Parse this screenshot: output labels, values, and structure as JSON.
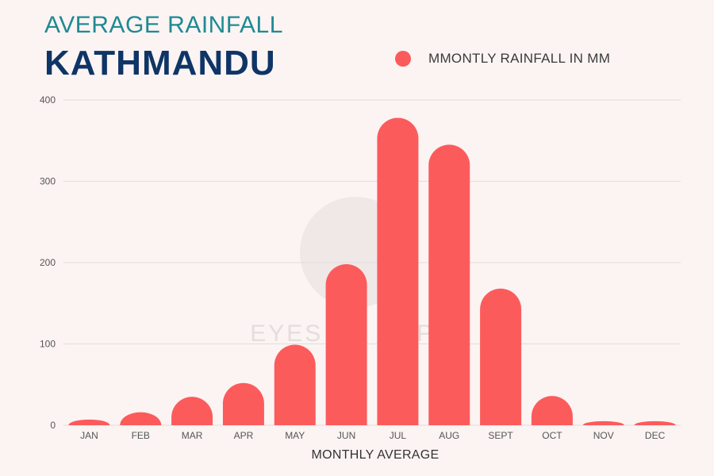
{
  "header": {
    "subtitle": "AVERAGE RAINFALL",
    "title": "KATHMANDU"
  },
  "watermark": {
    "text": "EYES OF NEPAL"
  },
  "chart_data": {
    "type": "bar",
    "categories": [
      "JAN",
      "FEB",
      "MAR",
      "APR",
      "MAY",
      "JUN",
      "JUL",
      "AUG",
      "SEPT",
      "OCT",
      "NOV",
      "DEC"
    ],
    "series": [
      {
        "name": "MMONTLY RAINFALL IN MM",
        "values": [
          7,
          16,
          35,
          52,
          99,
          198,
          378,
          345,
          168,
          36,
          5,
          5
        ],
        "color": "#fc5b5c"
      }
    ],
    "xlabel": "MONTHLY AVERAGE",
    "ylabel": "",
    "ylim": [
      0,
      400
    ],
    "yticks": [
      0,
      100,
      200,
      300,
      400
    ],
    "grid": true,
    "legend_position": "top-right"
  }
}
